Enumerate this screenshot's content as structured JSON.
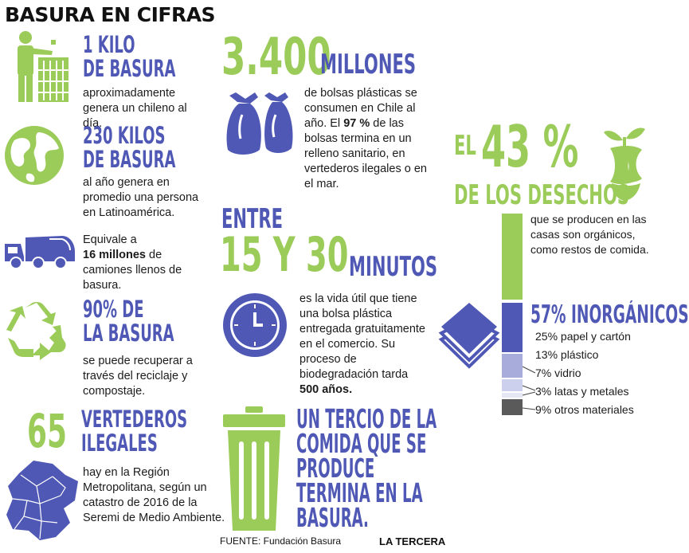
{
  "title": "BASURA EN CIFRAS",
  "kilo": {
    "h1": "1 KILO",
    "h2": "DE BASURA",
    "text": "aproximadamente genera un chileno al día."
  },
  "kilos230": {
    "h1": "230 KILOS",
    "h2": "DE BASURA",
    "text": "al año genera en promedio una persona en Latinoamérica."
  },
  "camiones": {
    "pre": "Equivale a",
    "bold": "16 millones",
    "post": "de camiones llenos de basura."
  },
  "reciclaje": {
    "h1": "90% DE",
    "h2": "LA BASURA",
    "text": "se puede recuperar a través del reciclaje y compostaje."
  },
  "vertederos": {
    "num": "65",
    "h1": "VERTEDEROS",
    "h2": "ILEGALES",
    "text": "hay en la Región Metropolitana, según un catastro de 2016 de la Seremi de Medio Ambiente."
  },
  "bolsas": {
    "num": "3.400",
    "unit": "MILLONES",
    "t1": "de bolsas plásticas se consumen en Chile al año. El",
    "bold": "97 %",
    "t2": "de las bolsas termina en un relleno sanitario, en vertederos ilegales o en el mar."
  },
  "minutos": {
    "pre": "ENTRE",
    "num": "15 Y 30",
    "unit": "MINUTOS",
    "t1": "es la vida útil que tiene una bolsa plástica entregada gratuitamente en el comercio. Su proceso de biodegradación tarda",
    "bold": "500 años."
  },
  "tercio": {
    "lines": [
      "UN TERCIO DE LA",
      "COMIDA QUE SE",
      "PRODUCE",
      "TERMINA EN LA",
      "BASURA."
    ]
  },
  "desechos": {
    "el": "EL",
    "pct": "43 %",
    "sub": "DE LOS DESECHOS",
    "text": "que se producen en las casas son orgánicos, como restos de comida.",
    "inorg": "57% INORGÁNICOS"
  },
  "breakdown": [
    {
      "label": "25% papel y cartón",
      "color": "#4f59b5"
    },
    {
      "label": "13% plástico",
      "color": "#a7acda"
    },
    {
      "label": "7% vidrio",
      "color": "#cdd0ec"
    },
    {
      "label": "3% latas y metales",
      "color": "#e6e7f4"
    },
    {
      "label": "9% otros materiales",
      "color": "#5a5a5a"
    }
  ],
  "colors": {
    "blue": "#4f59b5",
    "green": "#9bcb59"
  },
  "icons": [
    "trash-person-icon",
    "globe-icon",
    "garbage-truck-icon",
    "recycle-icon",
    "map-icon",
    "trash-bags-icon",
    "clock-icon",
    "trash-can-icon",
    "apple-core-icon",
    "stacked-paper-icon"
  ],
  "source": "FUENTE: Fundación Basura",
  "brand": "LA TERCERA"
}
